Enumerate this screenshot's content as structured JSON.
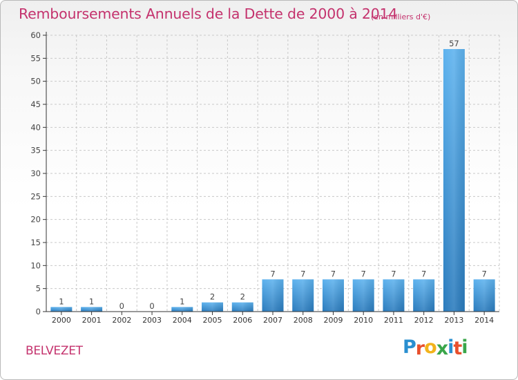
{
  "header": {
    "title": "Remboursements Annuels de la Dette de 2000 à 2014",
    "unit": "(en milliers d'€)"
  },
  "footer": {
    "commune": "BELVEZET",
    "logo_letters": [
      {
        "ch": "P",
        "color": "#2a8fd0"
      },
      {
        "ch": "r",
        "color": "#e8502d"
      },
      {
        "ch": "o",
        "color": "#f2b31c"
      },
      {
        "ch": "x",
        "color": "#3aa64a"
      },
      {
        "ch": "i",
        "color": "#2a8fd0"
      },
      {
        "ch": "t",
        "color": "#e8502d"
      },
      {
        "ch": "i",
        "color": "#3aa64a"
      }
    ]
  },
  "colors": {
    "title": "#c4326d",
    "bar_light": "#5ab0ec",
    "bar_dark": "#2a7fc0",
    "grid": "#c8c8c8",
    "axis": "#333333",
    "text": "#444444"
  },
  "chart_data": {
    "type": "bar",
    "title": "Remboursements Annuels de la Dette de 2000 à 2014",
    "subtitle": "(en milliers d'€)",
    "xlabel": "",
    "ylabel": "",
    "categories": [
      "2000",
      "2001",
      "2002",
      "2003",
      "2004",
      "2005",
      "2006",
      "2007",
      "2008",
      "2009",
      "2010",
      "2011",
      "2012",
      "2013",
      "2014"
    ],
    "values": [
      1,
      1,
      0,
      0,
      1,
      2,
      2,
      7,
      7,
      7,
      7,
      7,
      7,
      57,
      7
    ],
    "ylim": [
      0,
      60
    ],
    "yticks": [
      0,
      5,
      10,
      15,
      20,
      25,
      30,
      35,
      40,
      45,
      50,
      55,
      60
    ],
    "grid": true,
    "data_labels": true
  }
}
